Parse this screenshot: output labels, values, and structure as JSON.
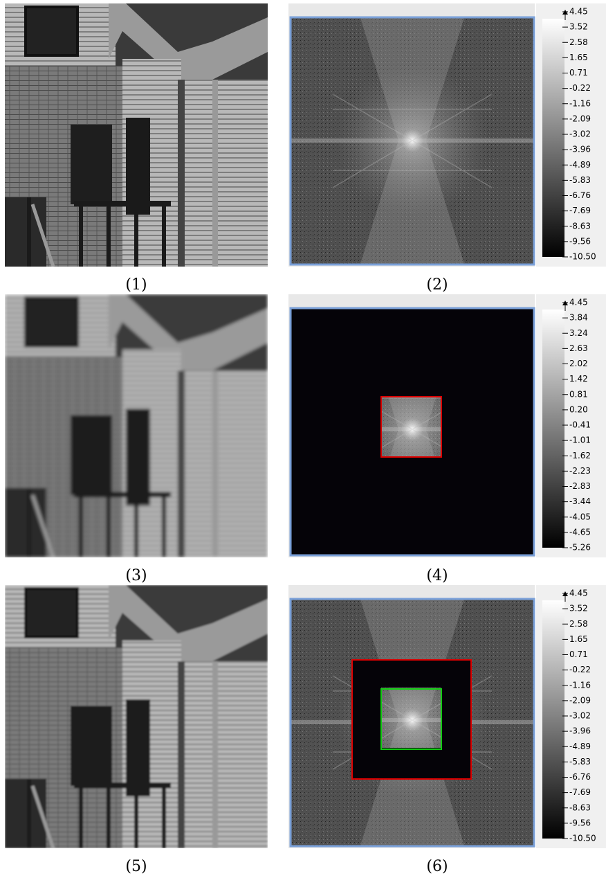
{
  "panels": [
    {
      "caption": "(1)"
    },
    {
      "caption": "(2)",
      "colorbar_ticks": [
        "4.45",
        "3.52",
        "2.58",
        "1.65",
        "0.71",
        "-0.22",
        "-1.16",
        "-2.09",
        "-3.02",
        "-3.96",
        "-4.89",
        "-5.83",
        "-6.76",
        "-7.69",
        "-8.63",
        "-9.56",
        "-10.50"
      ]
    },
    {
      "caption": "(3)"
    },
    {
      "caption": "(4)",
      "colorbar_ticks": [
        "4.45",
        "3.84",
        "3.24",
        "2.63",
        "2.02",
        "1.42",
        "0.81",
        "0.20",
        "-0.41",
        "-1.01",
        "-1.62",
        "-2.23",
        "-2.83",
        "-3.44",
        "-4.05",
        "-4.65",
        "-5.26"
      ]
    },
    {
      "caption": "(5)"
    },
    {
      "caption": "(6)",
      "colorbar_ticks": [
        "4.45",
        "3.52",
        "2.58",
        "1.65",
        "0.71",
        "-0.22",
        "-1.16",
        "-2.09",
        "-3.02",
        "-3.96",
        "-4.89",
        "-5.83",
        "-6.76",
        "-7.69",
        "-8.63",
        "-9.56",
        "-10.50"
      ]
    }
  ]
}
